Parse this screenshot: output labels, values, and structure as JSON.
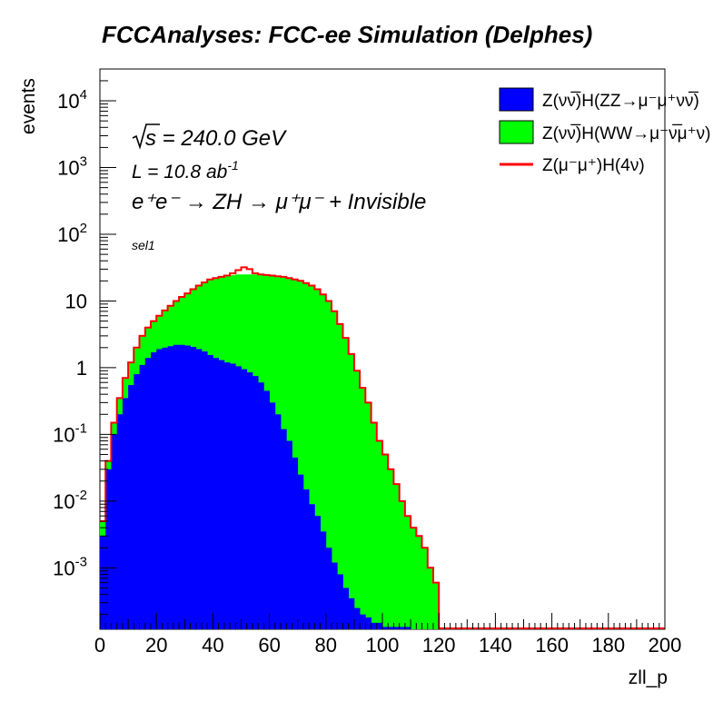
{
  "chart_data": {
    "type": "histogram-stacked",
    "title": "FCCAnalyses: FCC-ee Simulation (Delphes)",
    "xlabel": "zll_p",
    "ylabel": "events",
    "xlim": [
      0,
      200
    ],
    "ylim": [
      0.00012,
      30000
    ],
    "y_scale": "log",
    "x_ticks": [
      "0",
      "20",
      "40",
      "60",
      "80",
      "100",
      "120",
      "140",
      "160",
      "180",
      "200"
    ],
    "y_ticks": [
      {
        "base": "10",
        "exp": "-3"
      },
      {
        "base": "10",
        "exp": "-2"
      },
      {
        "base": "10",
        "exp": "-1"
      },
      {
        "base": "1",
        "exp": ""
      },
      {
        "base": "10",
        "exp": ""
      },
      {
        "base": "10",
        "exp": "2"
      },
      {
        "base": "10",
        "exp": "3"
      },
      {
        "base": "10",
        "exp": "4"
      }
    ],
    "annotations": {
      "sqrt_s": "s = 240.0 GeV",
      "lumi_main": "L = 10.8 ab",
      "lumi_exp": "-1",
      "process": "e⁺e⁻ → ZH → μ⁺μ⁻ + Invisible",
      "selection": "sel1"
    },
    "legend_position": "top-right",
    "series": [
      {
        "name": "Z(νν̅)H(ZZ→μ⁻μ⁺νν̅)",
        "style": "filled",
        "color": "#0000ff",
        "x": [
          0,
          2,
          4,
          6,
          8,
          10,
          12,
          14,
          16,
          18,
          20,
          22,
          24,
          26,
          28,
          30,
          32,
          34,
          36,
          38,
          40,
          42,
          44,
          46,
          48,
          50,
          52,
          54,
          56,
          58,
          60,
          62,
          64,
          66,
          68,
          70,
          72,
          74,
          76,
          78,
          80,
          82,
          84,
          86,
          88,
          90,
          92,
          94,
          96,
          98,
          100,
          102,
          104,
          106,
          108
        ],
        "values": [
          0.003,
          0.03,
          0.1,
          0.2,
          0.35,
          0.55,
          0.8,
          1.1,
          1.4,
          1.7,
          1.9,
          2.0,
          2.1,
          2.2,
          2.2,
          2.15,
          2.05,
          1.9,
          1.75,
          1.55,
          1.4,
          1.3,
          1.2,
          1.15,
          1.05,
          0.95,
          0.85,
          0.75,
          0.6,
          0.45,
          0.3,
          0.2,
          0.12,
          0.08,
          0.045,
          0.025,
          0.015,
          0.009,
          0.006,
          0.0035,
          0.002,
          0.0012,
          0.0008,
          0.0005,
          0.00035,
          0.00025,
          0.0002,
          0.00018,
          0.00015,
          0.00015,
          0.00013,
          0.00013,
          0.00013,
          0.00013,
          0.00013
        ]
      },
      {
        "name": "Z(νν̅)H(WW→μ⁻ν̅μ⁺ν)",
        "style": "filled",
        "color": "#00ff00",
        "x": [
          0,
          2,
          4,
          6,
          8,
          10,
          12,
          14,
          16,
          18,
          20,
          22,
          24,
          26,
          28,
          30,
          32,
          34,
          36,
          38,
          40,
          42,
          44,
          46,
          48,
          50,
          52,
          54,
          56,
          58,
          60,
          62,
          64,
          66,
          68,
          70,
          72,
          74,
          76,
          78,
          80,
          82,
          84,
          86,
          88,
          90,
          92,
          94,
          96,
          98,
          100,
          102,
          104,
          106,
          108,
          110,
          112,
          114,
          116,
          118
        ],
        "values": [
          0.005,
          0.04,
          0.15,
          0.35,
          0.7,
          1.2,
          2.0,
          3.0,
          4.0,
          5.0,
          6.0,
          7.2,
          8.5,
          10,
          11.5,
          13,
          15,
          17,
          19,
          21,
          22,
          23,
          24,
          24.5,
          25,
          25,
          25,
          25,
          25,
          24.5,
          24,
          23.5,
          23,
          22,
          21,
          20,
          18.5,
          17,
          15,
          12.5,
          10,
          7,
          4.5,
          2.8,
          1.6,
          0.9,
          0.5,
          0.3,
          0.15,
          0.08,
          0.05,
          0.03,
          0.018,
          0.01,
          0.006,
          0.004,
          0.003,
          0.002,
          0.001,
          0.0006
        ]
      },
      {
        "name": "Z(μ⁻μ⁺)H(4ν)",
        "style": "line",
        "color": "#ff0000",
        "x": [
          46,
          48,
          50,
          51,
          52,
          54,
          56
        ],
        "values": [
          26,
          29,
          32,
          35,
          30,
          26,
          25
        ]
      }
    ]
  }
}
